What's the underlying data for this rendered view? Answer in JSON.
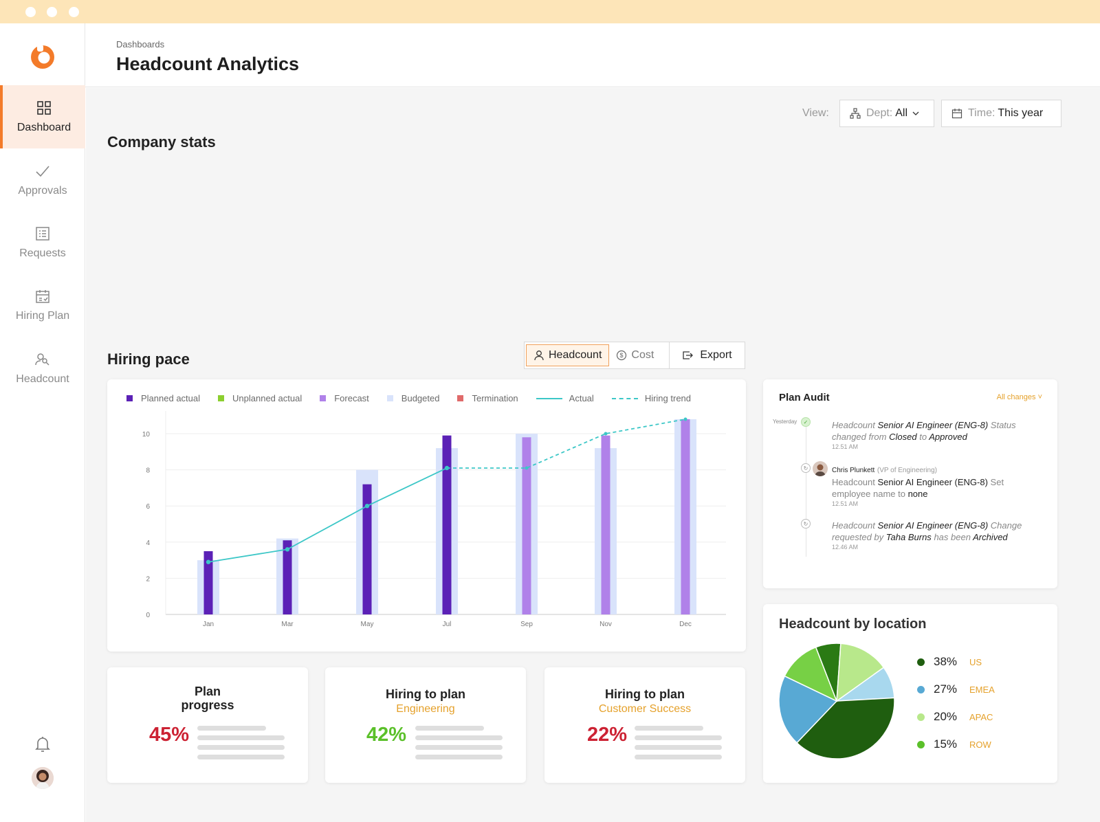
{
  "breadcrumb": "Dashboards",
  "page_title": "Headcount Analytics",
  "sidebar": {
    "items": [
      {
        "label": "Dashboard",
        "icon": "grid-icon",
        "active": true
      },
      {
        "label": "Approvals",
        "icon": "check-icon",
        "active": false
      },
      {
        "label": "Requests",
        "icon": "list-icon",
        "active": false
      },
      {
        "label": "Hiring Plan",
        "icon": "calendar-check-icon",
        "active": false
      },
      {
        "label": "Headcount",
        "icon": "people-icon",
        "active": false
      }
    ]
  },
  "filters": {
    "view_label": "View:",
    "dept_prefix": "Dept:",
    "dept_value": "All",
    "time_prefix": "Time:",
    "time_value": "This year"
  },
  "sections": {
    "company_stats": "Company stats",
    "hiring_pace": "Hiring pace"
  },
  "toggle": {
    "headcount_label": "Headcount",
    "cost_label": "Cost",
    "selected": "Headcount"
  },
  "export_label": "Export",
  "colors": {
    "accent": "#f37b2a",
    "planned_actual": "#5b21b6",
    "unplanned_actual": "#8ccf2f",
    "forecast": "#b081e9",
    "budgeted": "#d9e3fb",
    "termination": "#e06a6a",
    "trend": "#3cc7c7",
    "orange_text": "#e5a12b",
    "red_pct": "#cc2233",
    "green_pct": "#5bc02a"
  },
  "chart_data": {
    "type": "bar",
    "legend": [
      "Planned actual",
      "Unplanned actual",
      "Forecast",
      "Budgeted",
      "Termination",
      "Actual",
      "Hiring trend"
    ],
    "categories": [
      "Jan",
      "Mar",
      "May",
      "Jul",
      "Sep",
      "Nov",
      "Dec"
    ],
    "yticks": [
      0,
      2,
      4,
      6,
      8,
      10
    ],
    "ylim": [
      0,
      11
    ],
    "series": [
      {
        "name": "Budgeted",
        "kind": "bar",
        "values": [
          3,
          4.2,
          8,
          9.2,
          10,
          9.2,
          10.8
        ]
      },
      {
        "name": "Planned actual",
        "kind": "bar",
        "values": [
          3.5,
          4.1,
          7.2,
          9.9,
          null,
          null,
          null
        ]
      },
      {
        "name": "Forecast",
        "kind": "bar",
        "values": [
          null,
          null,
          null,
          null,
          9.8,
          9.9,
          10.8
        ]
      },
      {
        "name": "Actual",
        "kind": "line",
        "values": [
          2.9,
          3.6,
          6,
          8.1,
          null,
          null,
          null
        ]
      },
      {
        "name": "Hiring trend",
        "kind": "dashed-line",
        "values": [
          null,
          null,
          null,
          8.1,
          8.1,
          10,
          10.8
        ]
      }
    ],
    "grid": true,
    "legend_position": "top"
  },
  "audit": {
    "title": "Plan Audit",
    "filter_label": "All changes",
    "when": "Yesterday",
    "entries": [
      {
        "object_prefix": "Headcount",
        "object": "Senior AI Engineer (ENG-8)",
        "action": "Status changed from",
        "from": "Closed",
        "to_word": "to",
        "to": "Approved",
        "time": "12.51 AM"
      },
      {
        "user": "Chris Plunkett",
        "role": "(VP of Engineering)",
        "object_prefix": "Headcount",
        "object": "Senior AI Engineer (ENG-8)",
        "action": "Set employee name to",
        "value": "none",
        "time": "12.51 AM"
      },
      {
        "object_prefix": "Headcount",
        "object": "Senior AI Engineer (ENG-8)",
        "action": "Change requested by",
        "by": "Taha Burns",
        "mid": "has been",
        "result": "Archived",
        "time": "12.46 AM"
      }
    ]
  },
  "location": {
    "title": "Headcount by location",
    "rows": [
      {
        "pct": "38%",
        "name": "US",
        "color": "#1f5e0f"
      },
      {
        "pct": "27%",
        "name": "EMEA",
        "color": "#58a9d4"
      },
      {
        "pct": "20%",
        "name": "APAC",
        "color": "#b8e88b"
      },
      {
        "pct": "15%",
        "name": "ROW",
        "color": "#5bc02a"
      }
    ]
  },
  "stats": [
    {
      "title": "Plan progress",
      "subtitle": "",
      "pct": "45%",
      "progress": 0.45,
      "color": "#cc2233"
    },
    {
      "title": "Hiring to plan",
      "subtitle": "Engineering",
      "pct": "42%",
      "progress": 0.42,
      "color": "#5bc02a"
    },
    {
      "title": "Hiring to plan",
      "subtitle": "Customer Success",
      "pct": "22%",
      "progress": 0.22,
      "color": "#cc2233"
    }
  ]
}
